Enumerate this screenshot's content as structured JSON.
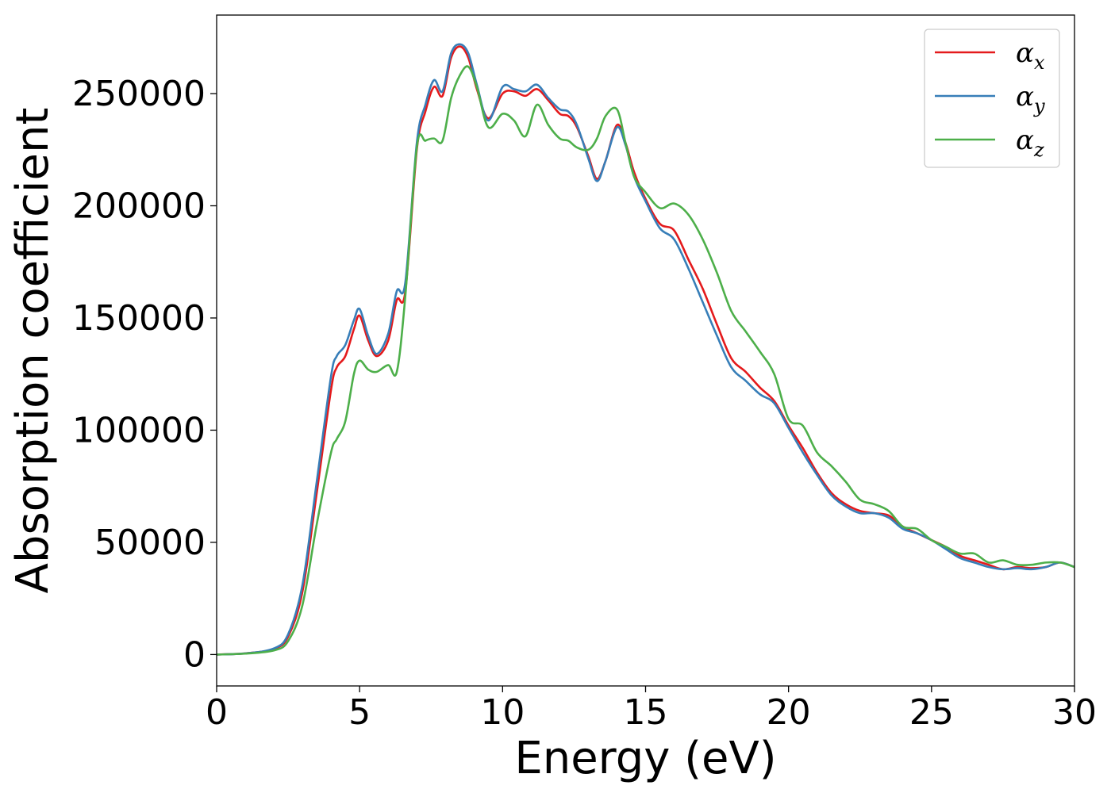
{
  "chart_data": {
    "type": "line",
    "title": "",
    "xlabel": "Energy (eV)",
    "ylabel": "Absorption coefficient",
    "xlim": [
      0,
      30
    ],
    "ylim": [
      -14000,
      285000
    ],
    "xticks": [
      0,
      5,
      10,
      15,
      20,
      25,
      30
    ],
    "yticks": [
      0,
      50000,
      100000,
      150000,
      200000,
      250000
    ],
    "grid": false,
    "legend_position": "top-right",
    "series": [
      {
        "name": "α",
        "subscript": "x",
        "color": "#e41a1c",
        "x": [
          0,
          1,
          2,
          2.5,
          3,
          3.5,
          4,
          4.2,
          4.5,
          4.8,
          5,
          5.3,
          5.6,
          6,
          6.3,
          6.6,
          7,
          7.3,
          7.6,
          7.9,
          8.2,
          8.5,
          8.8,
          9.1,
          9.5,
          10,
          10.4,
          10.8,
          11.2,
          11.6,
          12,
          12.3,
          12.6,
          13,
          13.3,
          13.6,
          14,
          14.3,
          14.6,
          15,
          15.5,
          16,
          16.5,
          17,
          17.5,
          18,
          18.5,
          19,
          19.5,
          20,
          20.5,
          21,
          21.5,
          22,
          22.5,
          23,
          23.5,
          24,
          24.5,
          25,
          25.5,
          26,
          26.5,
          27,
          27.5,
          28,
          28.5,
          29,
          29.5,
          30
        ],
        "y": [
          0,
          500,
          2500,
          8000,
          28000,
          72000,
          118000,
          128000,
          133000,
          145000,
          151000,
          140000,
          133000,
          140000,
          158000,
          162000,
          225000,
          242000,
          253000,
          249000,
          266000,
          271000,
          266000,
          252000,
          239000,
          250000,
          251000,
          249000,
          252000,
          247000,
          241000,
          240000,
          235000,
          222000,
          212000,
          220000,
          236000,
          228000,
          215000,
          203000,
          192000,
          189000,
          176000,
          163000,
          147000,
          132000,
          126000,
          119000,
          113000,
          102000,
          92000,
          81000,
          72000,
          67000,
          64000,
          63000,
          62000,
          57000,
          54000,
          51000,
          48000,
          44000,
          42000,
          40000,
          38000,
          39000,
          38500,
          39000,
          41000,
          39000
        ]
      },
      {
        "name": "α",
        "subscript": "y",
        "color": "#377eb8",
        "x": [
          0,
          1,
          2,
          2.5,
          3,
          3.5,
          4,
          4.2,
          4.5,
          4.8,
          5,
          5.3,
          5.6,
          6,
          6.3,
          6.6,
          7,
          7.3,
          7.6,
          7.9,
          8.2,
          8.5,
          8.8,
          9.1,
          9.5,
          10,
          10.4,
          10.8,
          11.2,
          11.6,
          12,
          12.3,
          12.6,
          13,
          13.3,
          13.6,
          14,
          14.3,
          14.6,
          15,
          15.5,
          16,
          16.5,
          17,
          17.5,
          18,
          18.5,
          19,
          19.5,
          20,
          20.5,
          21,
          21.5,
          22,
          22.5,
          23,
          23.5,
          24,
          24.5,
          25,
          25.5,
          26,
          26.5,
          27,
          27.5,
          28,
          28.5,
          29,
          29.5,
          30
        ],
        "y": [
          0,
          500,
          2700,
          9000,
          31000,
          77000,
          124000,
          133000,
          138000,
          149000,
          154000,
          142000,
          134000,
          143000,
          162000,
          166000,
          228000,
          245000,
          256000,
          251000,
          268000,
          272000,
          268000,
          254000,
          238000,
          253000,
          252000,
          251000,
          254000,
          248000,
          243000,
          242000,
          236000,
          221000,
          211000,
          220000,
          235000,
          227000,
          213000,
          202000,
          190000,
          185000,
          172000,
          157000,
          142000,
          128000,
          122000,
          116000,
          112000,
          101000,
          90000,
          80000,
          71000,
          66000,
          63000,
          63000,
          61000,
          56000,
          54000,
          51000,
          47000,
          43000,
          41000,
          39000,
          38000,
          38500,
          38000,
          39000,
          41000,
          39000
        ]
      },
      {
        "name": "α",
        "subscript": "z",
        "color": "#4daf4a",
        "x": [
          0,
          1,
          2,
          2.5,
          3,
          3.5,
          4,
          4.2,
          4.5,
          4.8,
          5,
          5.3,
          5.6,
          6,
          6.3,
          6.6,
          7,
          7.3,
          7.6,
          7.9,
          8.2,
          8.5,
          8.8,
          9.1,
          9.5,
          10,
          10.4,
          10.8,
          11.2,
          11.6,
          12,
          12.3,
          12.6,
          13,
          13.3,
          13.6,
          14,
          14.3,
          14.6,
          15,
          15.5,
          16,
          16.5,
          17,
          17.5,
          18,
          18.5,
          19,
          19.5,
          20,
          20.5,
          21,
          21.5,
          22,
          22.5,
          23,
          23.5,
          24,
          24.5,
          25,
          25.5,
          26,
          26.5,
          27,
          27.5,
          28,
          28.5,
          29,
          29.5,
          30
        ],
        "y": [
          0,
          400,
          1800,
          6000,
          22000,
          58000,
          90000,
          96000,
          104000,
          125000,
          131000,
          127000,
          126000,
          129000,
          126000,
          160000,
          226000,
          229000,
          230000,
          229000,
          248000,
          258000,
          262000,
          253000,
          235000,
          241000,
          238000,
          231000,
          245000,
          236000,
          230000,
          229000,
          226000,
          225000,
          230000,
          240000,
          243000,
          228000,
          213000,
          206000,
          199000,
          201000,
          196000,
          185000,
          170000,
          153000,
          144000,
          135000,
          125000,
          105000,
          102000,
          90000,
          84000,
          77000,
          69000,
          67000,
          64000,
          57000,
          56000,
          51000,
          48000,
          45000,
          45000,
          41000,
          42000,
          40000,
          40000,
          41000,
          41000,
          39000
        ]
      }
    ]
  }
}
